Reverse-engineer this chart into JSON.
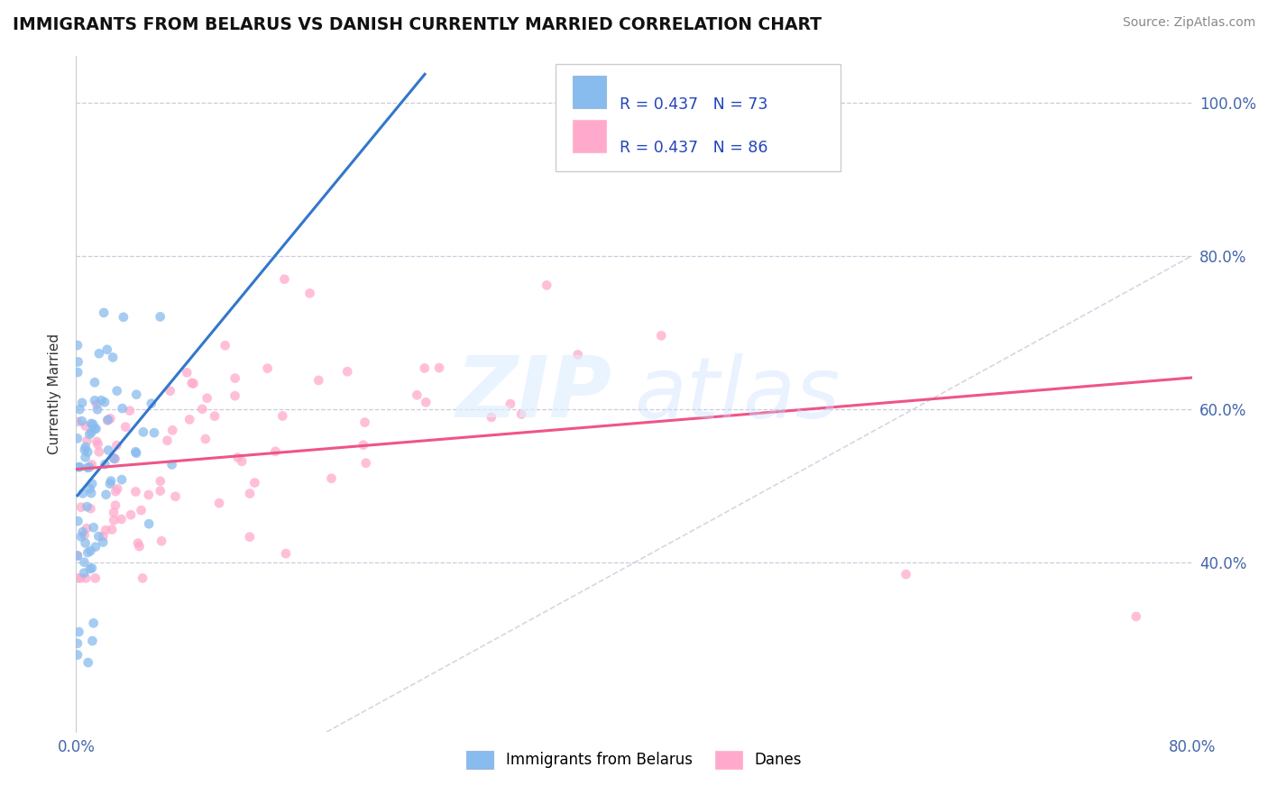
{
  "title": "IMMIGRANTS FROM BELARUS VS DANISH CURRENTLY MARRIED CORRELATION CHART",
  "source": "Source: ZipAtlas.com",
  "ylabel": "Currently Married",
  "legend_label1": "Immigrants from Belarus",
  "legend_label2": "Danes",
  "R1": 0.437,
  "N1": 73,
  "R2": 0.437,
  "N2": 86,
  "color_blue": "#88bbee",
  "color_pink": "#ffaacc",
  "color_blue_line": "#3377cc",
  "color_pink_line": "#ee5588",
  "color_diag": "#ccccdd",
  "watermark_text": "ZIP",
  "watermark_text2": "atlas",
  "x_min": 0.0,
  "x_max": 0.8,
  "y_min": 0.18,
  "y_max": 1.06,
  "y_ticks": [
    0.4,
    0.6,
    0.8,
    1.0
  ],
  "y_tick_labels": [
    "40.0%",
    "60.0%",
    "80.0%",
    "100.0%"
  ],
  "x_tick_left": "0.0%",
  "x_tick_right": "80.0%",
  "title_fontsize": 13.5,
  "source_fontsize": 10,
  "tick_fontsize": 12,
  "ylabel_fontsize": 11
}
